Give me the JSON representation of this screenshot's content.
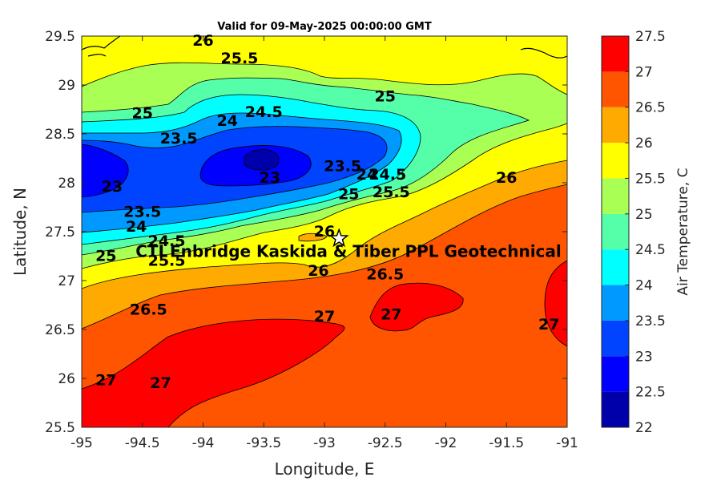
{
  "title": "Valid for 09-May-2025 00:00:00 GMT",
  "xlabel": "Longitude, E",
  "ylabel": "Latitude, N",
  "colorbar": {
    "label": "Air Temperature, C",
    "levels": [
      22,
      22.5,
      23,
      23.5,
      24,
      24.5,
      25,
      25.5,
      26,
      26.5,
      27,
      27.5
    ],
    "colors": [
      "#0000aa",
      "#0000ff",
      "#0044ff",
      "#0099ff",
      "#00ffff",
      "#55ffaa",
      "#aaff55",
      "#ffff00",
      "#ffaa00",
      "#ff5500",
      "#ff0000",
      "#aa0000"
    ]
  },
  "site": {
    "label": "CTI Enbridge  Kaskida & Tiber PPL Geotechnical",
    "lon": -92.88,
    "lat": 27.43,
    "marker": "star-icon"
  },
  "chart_data": {
    "type": "heatmap",
    "variable": "Air Temperature, C",
    "xlim": [
      -95,
      -91
    ],
    "ylim": [
      25.5,
      29.5
    ],
    "xticks": [
      -95,
      -94.5,
      -94,
      -93.5,
      -93,
      -92.5,
      -92,
      -91.5,
      -91
    ],
    "yticks": [
      25.5,
      26,
      26.5,
      27,
      27.5,
      28,
      28.5,
      29,
      29.5
    ],
    "contour_labels": [
      {
        "value": "26",
        "lon": -94.0,
        "lat": 29.45
      },
      {
        "value": "25.5",
        "lon": -93.7,
        "lat": 29.27
      },
      {
        "value": "25",
        "lon": -94.5,
        "lat": 28.71
      },
      {
        "value": "25",
        "lon": -92.5,
        "lat": 28.88
      },
      {
        "value": "24.5",
        "lon": -93.5,
        "lat": 28.72
      },
      {
        "value": "24",
        "lon": -93.8,
        "lat": 28.63
      },
      {
        "value": "23.5",
        "lon": -94.2,
        "lat": 28.45
      },
      {
        "value": "23",
        "lon": -94.75,
        "lat": 27.96
      },
      {
        "value": "23",
        "lon": -93.45,
        "lat": 28.05
      },
      {
        "value": "23.5",
        "lon": -92.85,
        "lat": 28.17
      },
      {
        "value": "24",
        "lon": -92.65,
        "lat": 28.08
      },
      {
        "value": "24.5",
        "lon": -92.48,
        "lat": 28.08
      },
      {
        "value": "25",
        "lon": -92.8,
        "lat": 27.88
      },
      {
        "value": "25.5",
        "lon": -92.45,
        "lat": 27.9
      },
      {
        "value": "26",
        "lon": -91.5,
        "lat": 28.05
      },
      {
        "value": "23.5",
        "lon": -94.5,
        "lat": 27.7
      },
      {
        "value": "24",
        "lon": -94.55,
        "lat": 27.55
      },
      {
        "value": "24.5",
        "lon": -94.3,
        "lat": 27.4
      },
      {
        "value": "25",
        "lon": -94.8,
        "lat": 27.25
      },
      {
        "value": "25.5",
        "lon": -94.3,
        "lat": 27.2
      },
      {
        "value": "26",
        "lon": -93.0,
        "lat": 27.5
      },
      {
        "value": "26",
        "lon": -93.05,
        "lat": 27.1
      },
      {
        "value": "26.5",
        "lon": -92.5,
        "lat": 27.06
      },
      {
        "value": "26.5",
        "lon": -94.45,
        "lat": 26.7
      },
      {
        "value": "27",
        "lon": -93.0,
        "lat": 26.63
      },
      {
        "value": "27",
        "lon": -92.45,
        "lat": 26.65
      },
      {
        "value": "27",
        "lon": -91.15,
        "lat": 26.55
      },
      {
        "value": "27",
        "lon": -94.8,
        "lat": 25.98
      },
      {
        "value": "27",
        "lon": -94.35,
        "lat": 25.95
      }
    ]
  }
}
